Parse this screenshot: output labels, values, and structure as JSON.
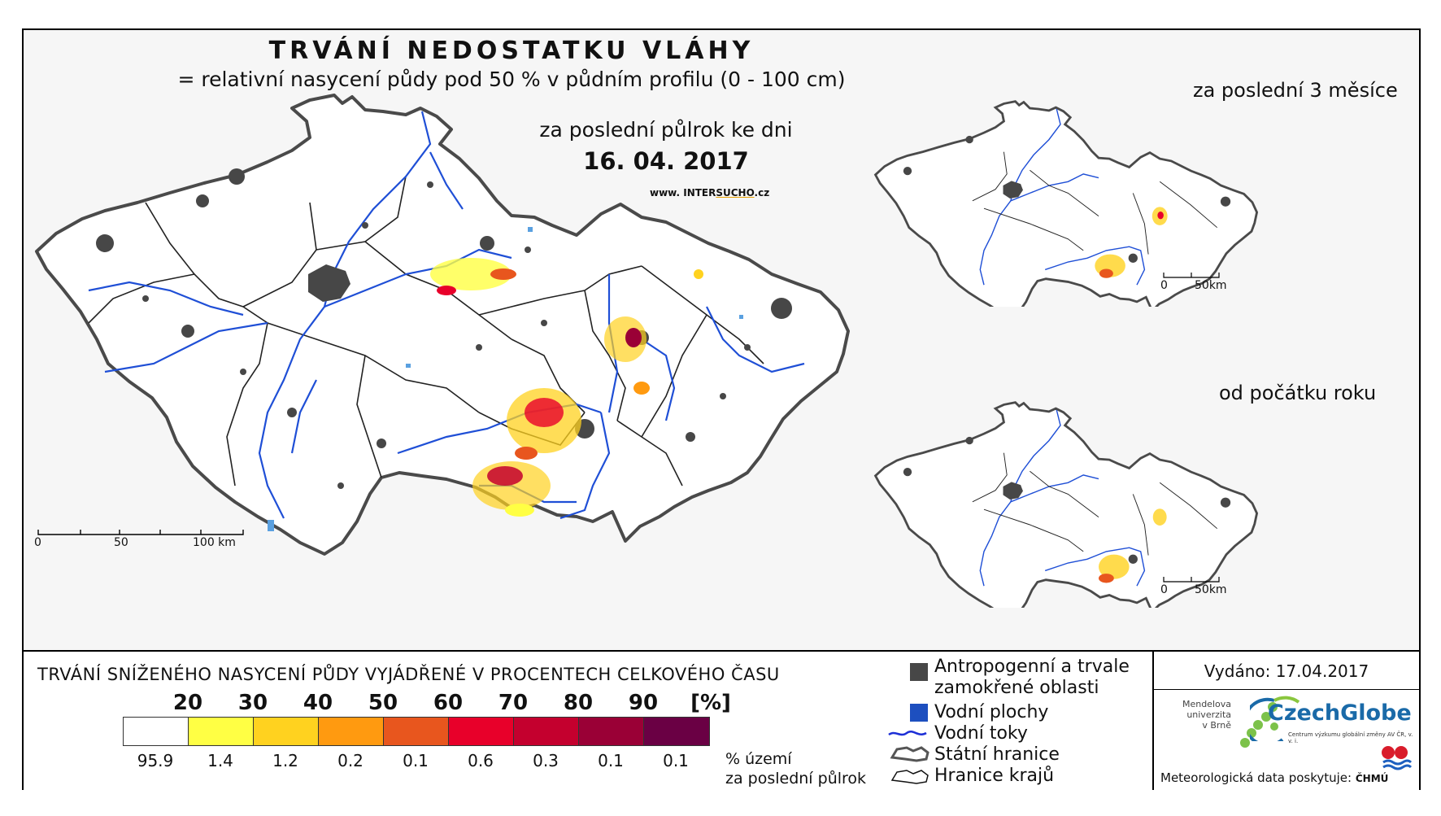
{
  "map": {
    "title": "TRVÁNÍ NEDOSTATKU VLÁHY",
    "subtitle": "= relativní nasycení půdy pod 50 % v půdním profilu (0 - 100 cm)",
    "period": "za poslední půlrok ke dni",
    "date": "16. 04. 2017",
    "url_prefix": "www. INTER",
    "url_brand": "SUCHO",
    "url_suffix": ".cz",
    "main_scale": {
      "zero": "0",
      "mid": "50",
      "end": "100 km"
    },
    "inset_3m": {
      "title": "za poslední 3 měsíce",
      "scale_zero": "0",
      "scale_end": "50km"
    },
    "inset_ytd": {
      "title": "od počátku roku",
      "scale_zero": "0",
      "scale_end": "50km"
    }
  },
  "colors": {
    "border": "#4a4a4a",
    "region_border": "#222222",
    "river": "#1f4fd6",
    "urban": "#474747",
    "water": "#5aa0e0"
  },
  "legend": {
    "title": "TRVÁNÍ SNÍŽENÉHO NASYCENÍ PŮDY VYJÁDŘENÉ V PROCENTECH CELKOVÉHO ČASU",
    "ticks": [
      "20",
      "30",
      "40",
      "50",
      "60",
      "70",
      "80",
      "90",
      "[%]"
    ],
    "classes": [
      {
        "color": "#ffffff",
        "percent": "95.9"
      },
      {
        "color": "#ffff44",
        "percent": "1.4"
      },
      {
        "color": "#ffd21f",
        "percent": "1.2"
      },
      {
        "color": "#ff9a10",
        "percent": "0.2"
      },
      {
        "color": "#e8561e",
        "percent": "0.1"
      },
      {
        "color": "#e8002a",
        "percent": "0.6"
      },
      {
        "color": "#c4002e",
        "percent": "0.3"
      },
      {
        "color": "#9a0036",
        "percent": "0.1"
      },
      {
        "color": "#6a0044",
        "percent": "0.1"
      }
    ],
    "percent_label_1": "% území",
    "percent_label_2": "za poslední půlrok"
  },
  "key": {
    "urban_1": "Antropogenní a trvale",
    "urban_2": "zamokřené oblasti",
    "water": "Vodní plochy",
    "rivers": "Vodní toky",
    "state_border": "Státní hranice",
    "region_border": "Hranice krajů"
  },
  "info": {
    "issued": "Vydáno: 17.04.2017",
    "mendel_1": "Mendelova",
    "mendel_2": "univerzita",
    "mendel_3": "v Brně",
    "czechglobe": "CzechGlobe",
    "czechglobe_sub": "Centrum výzkumu globální změny AV ČR, v. v. i.",
    "meteo": "Meteorologická data poskytuje:",
    "chmu": "ČHMÚ"
  }
}
